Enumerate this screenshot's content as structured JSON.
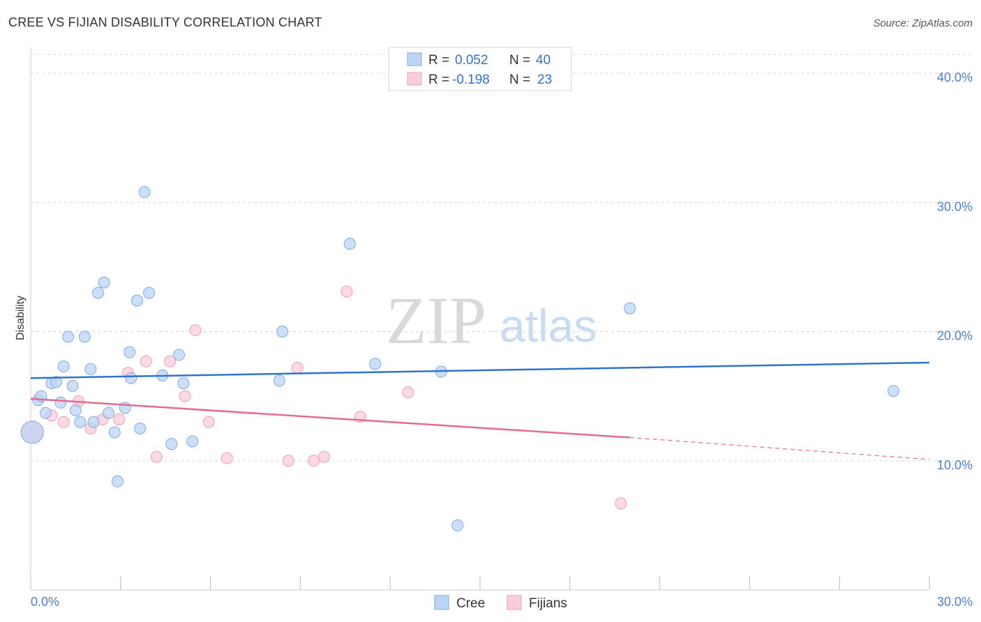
{
  "header": {
    "title": "CREE VS FIJIAN DISABILITY CORRELATION CHART",
    "source": "Source: ZipAtlas.com"
  },
  "watermark": {
    "part1": "ZIP",
    "part2": "atlas"
  },
  "legend": {
    "rows": [
      {
        "r_label": "R =",
        "r_value": "0.052",
        "n_label": "N =",
        "n_value": "40",
        "color": "#8fb8ec"
      },
      {
        "r_label": "R =",
        "r_value": "-0.198",
        "n_label": "N =",
        "n_value": "23",
        "color": "#f2a7be"
      }
    ]
  },
  "bottom_legend": [
    {
      "label": "Cree",
      "color": "#8fb8ec"
    },
    {
      "label": "Fijians",
      "color": "#f2a7be"
    }
  ],
  "colors": {
    "cree_fill": "#bcd4f5",
    "cree_stroke": "#7faae3",
    "cree_line": "#2f74cc",
    "fijian_fill": "#f9cddb",
    "fijian_stroke": "#ef9db6",
    "fijian_line": "#e46a94",
    "grid": "#d8d8d8",
    "tick_label": "#4a7fd0"
  },
  "chart_data": {
    "type": "scatter",
    "title": "CREE VS FIJIAN DISABILITY CORRELATION CHART",
    "xlabel": "",
    "ylabel": "Disability",
    "xlim": [
      0,
      30
    ],
    "ylim": [
      0,
      42
    ],
    "x_tick_labels": {
      "left": "0.0%",
      "right": "30.0%"
    },
    "y_ticks": [
      {
        "value": 10,
        "label": "10.0%"
      },
      {
        "value": 20,
        "label": "20.0%"
      },
      {
        "value": 30,
        "label": "30.0%"
      },
      {
        "value": 40,
        "label": "40.0%"
      }
    ],
    "grid": true,
    "legend_position": "top-center",
    "series": [
      {
        "name": "Cree",
        "r": 0.052,
        "n": 40,
        "points": [
          {
            "x": 0.05,
            "y": 12.2,
            "big": true
          },
          {
            "x": 0.25,
            "y": 14.7
          },
          {
            "x": 0.35,
            "y": 15.0
          },
          {
            "x": 0.5,
            "y": 13.7
          },
          {
            "x": 0.7,
            "y": 16.0
          },
          {
            "x": 0.85,
            "y": 16.1
          },
          {
            "x": 1.0,
            "y": 14.5
          },
          {
            "x": 1.1,
            "y": 17.3
          },
          {
            "x": 1.25,
            "y": 19.6
          },
          {
            "x": 1.4,
            "y": 15.8
          },
          {
            "x": 1.5,
            "y": 13.9
          },
          {
            "x": 1.65,
            "y": 13.0
          },
          {
            "x": 1.8,
            "y": 19.6
          },
          {
            "x": 2.0,
            "y": 17.1
          },
          {
            "x": 2.1,
            "y": 13.0
          },
          {
            "x": 2.25,
            "y": 23.0
          },
          {
            "x": 2.45,
            "y": 23.8
          },
          {
            "x": 2.6,
            "y": 13.7
          },
          {
            "x": 2.8,
            "y": 12.2
          },
          {
            "x": 2.9,
            "y": 8.4
          },
          {
            "x": 3.15,
            "y": 14.1
          },
          {
            "x": 3.3,
            "y": 18.4
          },
          {
            "x": 3.35,
            "y": 16.4
          },
          {
            "x": 3.55,
            "y": 22.4
          },
          {
            "x": 3.65,
            "y": 12.5
          },
          {
            "x": 3.8,
            "y": 30.8
          },
          {
            "x": 3.95,
            "y": 23.0
          },
          {
            "x": 4.4,
            "y": 16.6
          },
          {
            "x": 4.7,
            "y": 11.3
          },
          {
            "x": 4.95,
            "y": 18.2
          },
          {
            "x": 5.1,
            "y": 16.0
          },
          {
            "x": 5.4,
            "y": 11.5
          },
          {
            "x": 8.3,
            "y": 16.2
          },
          {
            "x": 8.4,
            "y": 20.0
          },
          {
            "x": 10.65,
            "y": 26.8
          },
          {
            "x": 11.5,
            "y": 17.5
          },
          {
            "x": 13.7,
            "y": 16.9
          },
          {
            "x": 14.25,
            "y": 5.0
          },
          {
            "x": 20.0,
            "y": 21.8
          },
          {
            "x": 28.8,
            "y": 15.4
          }
        ],
        "trend": {
          "x": [
            0,
            30
          ],
          "y": [
            16.4,
            17.6
          ]
        }
      },
      {
        "name": "Fijians",
        "r": -0.198,
        "n": 23,
        "points": [
          {
            "x": 0.05,
            "y": 12.2,
            "big": true
          },
          {
            "x": 0.7,
            "y": 13.5
          },
          {
            "x": 1.1,
            "y": 13.0
          },
          {
            "x": 1.6,
            "y": 14.6
          },
          {
            "x": 2.0,
            "y": 12.5
          },
          {
            "x": 2.4,
            "y": 13.2
          },
          {
            "x": 2.95,
            "y": 13.2
          },
          {
            "x": 3.25,
            "y": 16.8
          },
          {
            "x": 3.85,
            "y": 17.7
          },
          {
            "x": 4.2,
            "y": 10.3
          },
          {
            "x": 4.65,
            "y": 17.7
          },
          {
            "x": 5.15,
            "y": 15.0
          },
          {
            "x": 5.5,
            "y": 20.1
          },
          {
            "x": 5.95,
            "y": 13.0
          },
          {
            "x": 6.55,
            "y": 10.2
          },
          {
            "x": 8.6,
            "y": 10.0
          },
          {
            "x": 8.9,
            "y": 17.2
          },
          {
            "x": 9.45,
            "y": 10.0
          },
          {
            "x": 9.8,
            "y": 10.3
          },
          {
            "x": 10.55,
            "y": 23.1
          },
          {
            "x": 11.0,
            "y": 13.4
          },
          {
            "x": 12.6,
            "y": 15.3
          },
          {
            "x": 19.7,
            "y": 6.7
          }
        ],
        "trend": {
          "x": [
            0,
            20
          ],
          "y": [
            14.8,
            11.8
          ]
        },
        "trend_dashed": {
          "x": [
            20,
            30
          ],
          "y": [
            11.8,
            10.1
          ]
        }
      }
    ]
  }
}
